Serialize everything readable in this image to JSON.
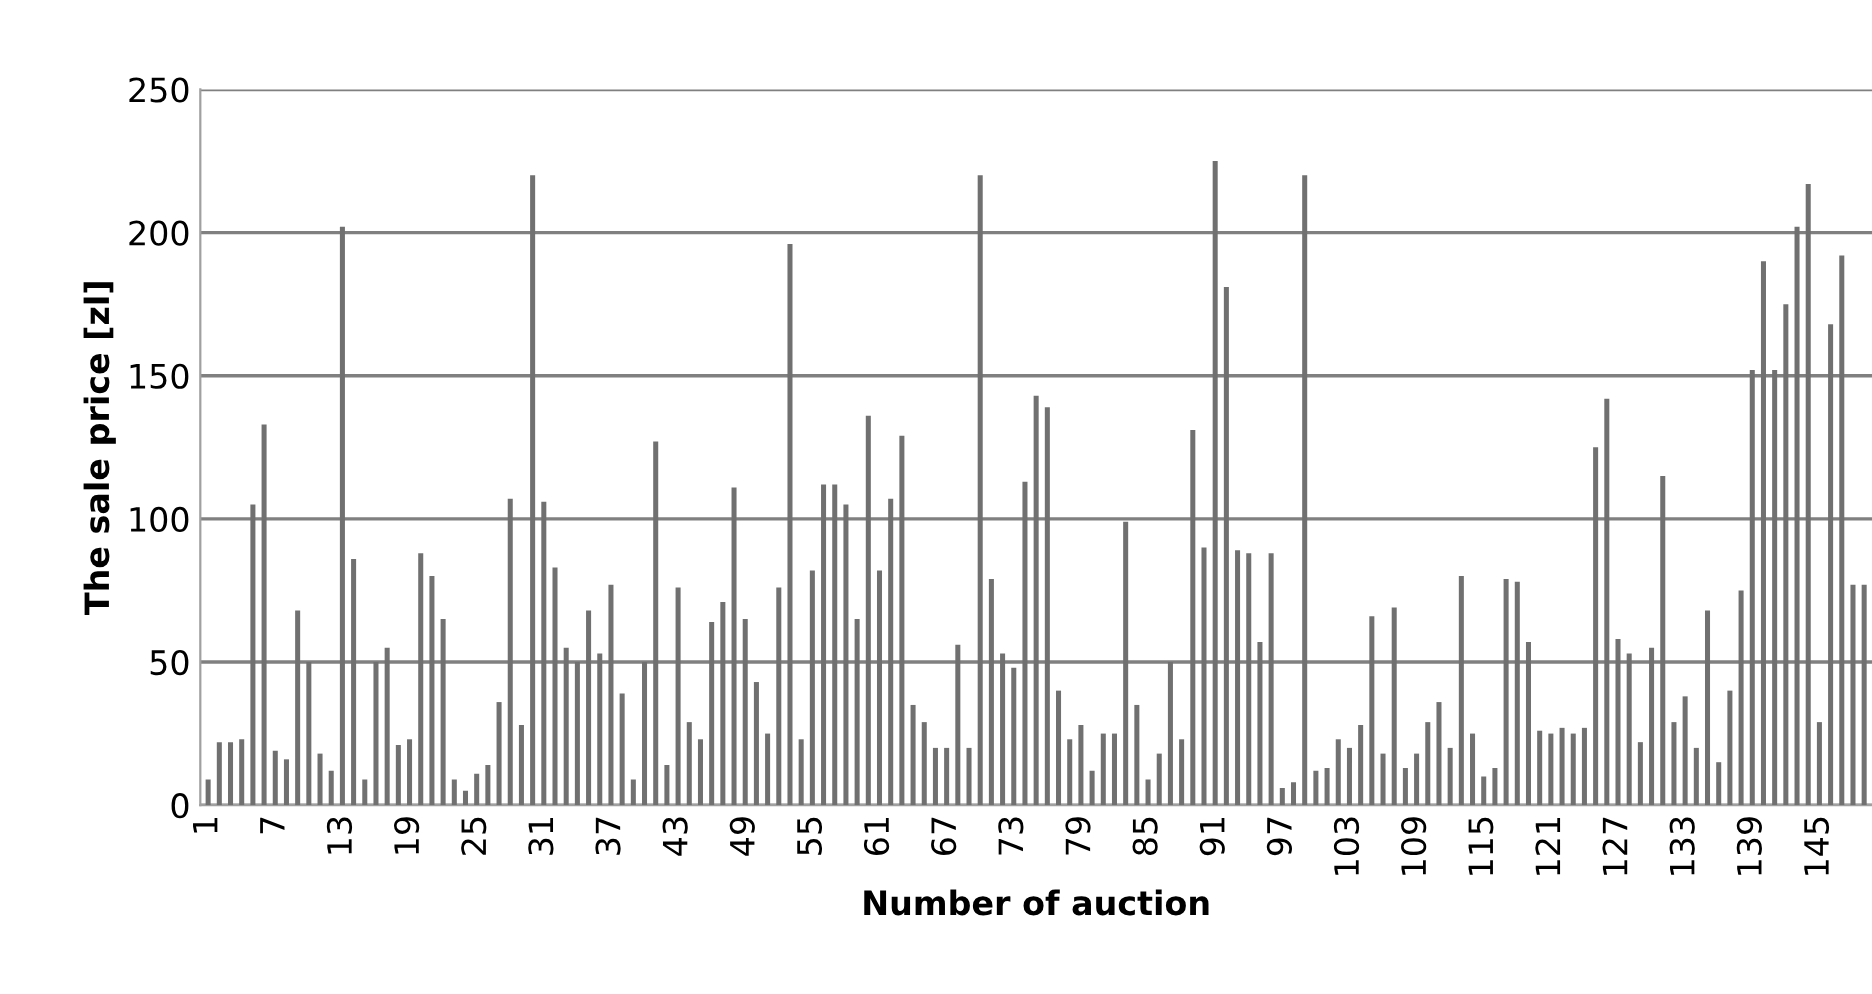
{
  "chart_data": {
    "type": "bar",
    "xlabel": "Number of auction",
    "ylabel": "The sale price [zl]",
    "categories": [
      "1",
      null,
      null,
      null,
      null,
      null,
      "7",
      null,
      null,
      null,
      null,
      null,
      "13",
      null,
      null,
      null,
      null,
      null,
      "19",
      null,
      null,
      null,
      null,
      null,
      "25",
      null,
      null,
      null,
      null,
      null,
      "31",
      null,
      null,
      null,
      null,
      null,
      "37",
      null,
      null,
      null,
      null,
      null,
      "43",
      null,
      null,
      null,
      null,
      null,
      "49",
      null,
      null,
      null,
      null,
      null,
      "55",
      null,
      null,
      null,
      null,
      null,
      "61",
      null,
      null,
      null,
      null,
      null,
      "67",
      null,
      null,
      null,
      null,
      null,
      "73",
      null,
      null,
      null,
      null,
      null,
      "79",
      null,
      null,
      null,
      null,
      null,
      "85",
      null,
      null,
      null,
      null,
      null,
      "91",
      null,
      null,
      null,
      null,
      null,
      "97",
      null,
      null,
      null,
      null,
      null,
      "103",
      null,
      null,
      null,
      null,
      null,
      "109",
      null,
      null,
      null,
      null,
      null,
      "115",
      null,
      null,
      null,
      null,
      null,
      "121",
      null,
      null,
      null,
      null,
      null,
      "127",
      null,
      null,
      null,
      null,
      null,
      "133",
      null,
      null,
      null,
      null,
      null,
      "139",
      null,
      null,
      null,
      null,
      null,
      "145",
      null,
      null,
      null,
      null
    ],
    "values": [
      9,
      22,
      22,
      23,
      105,
      133,
      19,
      16,
      68,
      50,
      18,
      12,
      202,
      86,
      9,
      50,
      55,
      21,
      23,
      88,
      80,
      65,
      9,
      5,
      11,
      14,
      36,
      107,
      28,
      220,
      106,
      83,
      55,
      50,
      68,
      53,
      77,
      39,
      9,
      50,
      127,
      14,
      76,
      29,
      23,
      64,
      71,
      111,
      65,
      43,
      25,
      76,
      196,
      23,
      82,
      112,
      112,
      105,
      65,
      136,
      82,
      107,
      129,
      35,
      29,
      20,
      20,
      56,
      20,
      220,
      79,
      53,
      48,
      113,
      143,
      139,
      40,
      23,
      28,
      12,
      25,
      25,
      99,
      35,
      9,
      18,
      50,
      23,
      131,
      90,
      225,
      181,
      89,
      88,
      57,
      88,
      6,
      8,
      220,
      12,
      13,
      23,
      20,
      28,
      66,
      18,
      69,
      13,
      18,
      29,
      36,
      20,
      80,
      25,
      10,
      13,
      79,
      78,
      57,
      26,
      25,
      27,
      25,
      27,
      125,
      142,
      58,
      53,
      22,
      55,
      115,
      29,
      38,
      20,
      68,
      15,
      40,
      75,
      152,
      190,
      152,
      175,
      202,
      217,
      29,
      168,
      192,
      77,
      77
    ],
    "color": "#707070",
    "ylim": [
      0,
      250
    ],
    "yticks": [
      0,
      50,
      100,
      150,
      200,
      250
    ],
    "grid": "y"
  }
}
